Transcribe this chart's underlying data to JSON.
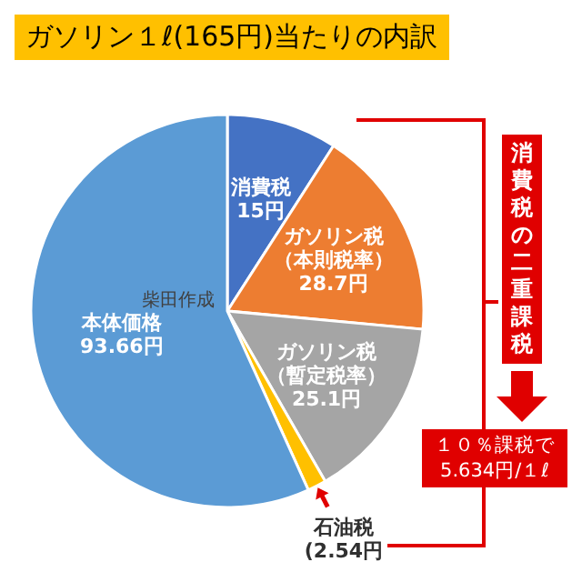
{
  "chart_data": {
    "type": "pie",
    "title": "ガソリン１ℓ(165円)当たりの内訳",
    "categories": [
      "消費税",
      "ガソリン税（本則税率）",
      "ガソリン税（暫定税率）",
      "石油税",
      "本体価格"
    ],
    "values": [
      15,
      28.7,
      25.1,
      2.54,
      93.66
    ],
    "value_labels": [
      "15円",
      "28.7円",
      "25.1円",
      "(2.54円",
      "93.66円"
    ],
    "colors": [
      "#4472c4",
      "#ed7d31",
      "#a5a5a5",
      "#ffc000",
      "#5b9bd5"
    ],
    "annotations": [
      "柴田作成",
      "消費税の二重課税",
      "１０％課税で",
      "5.634円/１ℓ"
    ],
    "legend": false
  }
}
